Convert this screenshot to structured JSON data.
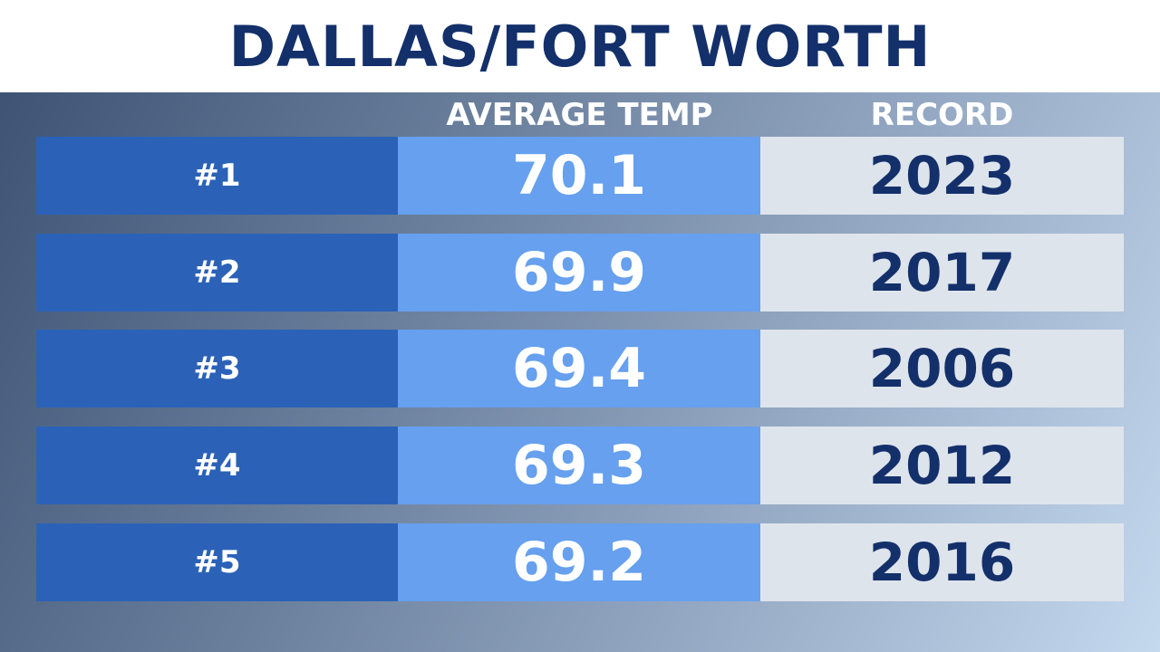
{
  "title": "DALLAS/FORT WORTH",
  "chart_data": {
    "type": "table",
    "title": "DALLAS/FORT WORTH",
    "columns": [
      "",
      "AVERAGE TEMP",
      "RECORD"
    ],
    "rows": [
      {
        "rank": "#1",
        "average_temp": "70.1",
        "record": "2023"
      },
      {
        "rank": "#2",
        "average_temp": "69.9",
        "record": "2017"
      },
      {
        "rank": "#3",
        "average_temp": "69.4",
        "record": "2006"
      },
      {
        "rank": "#4",
        "average_temp": "69.3",
        "record": "2012"
      },
      {
        "rank": "#5",
        "average_temp": "69.2",
        "record": "2016"
      }
    ]
  },
  "colors": {
    "title": "#14306b",
    "rank_cell": "#2b62b8",
    "temp_cell": "#66a0ee",
    "record_cell": "#dee4ec",
    "record_text": "#14306b"
  }
}
